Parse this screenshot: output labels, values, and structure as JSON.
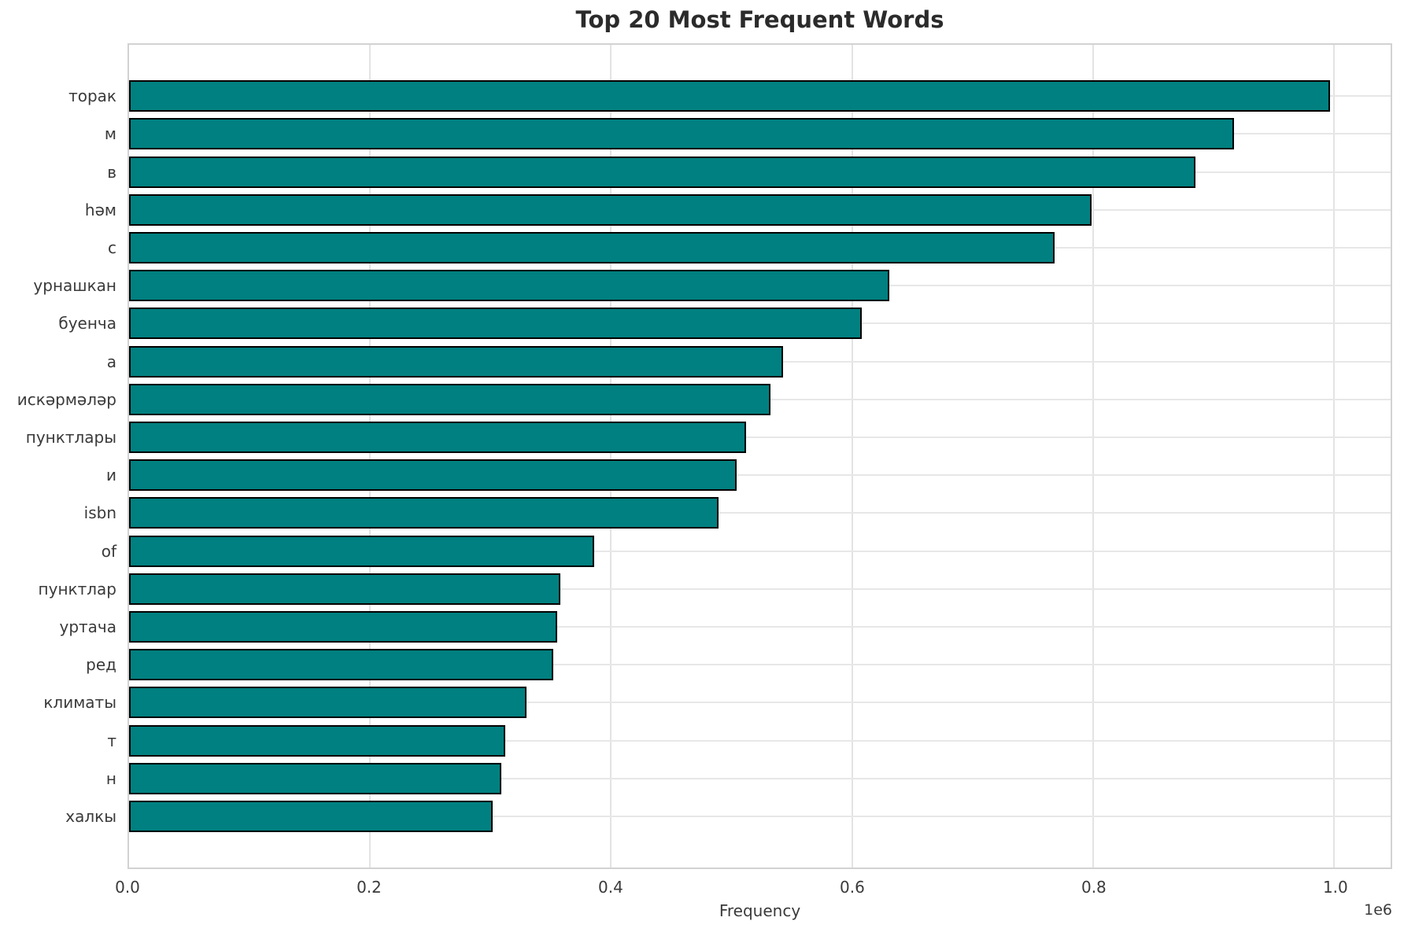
{
  "chart_data": {
    "type": "bar",
    "orientation": "horizontal",
    "title": "Top 20 Most Frequent Words",
    "xlabel": "Frequency",
    "ylabel": "",
    "offset_text": "1e6",
    "categories": [
      "торак",
      "м",
      "в",
      "һәм",
      "с",
      "урнашкан",
      "буенча",
      "а",
      "искәрмәләр",
      "пунктлары",
      "и",
      "isbn",
      "of",
      "пунктлар",
      "уртача",
      "ред",
      "климаты",
      "т",
      "н",
      "халкы"
    ],
    "values": [
      997000,
      917000,
      885000,
      799000,
      768000,
      631000,
      608000,
      543000,
      532000,
      512000,
      504000,
      489000,
      386000,
      358000,
      355000,
      352000,
      330000,
      312000,
      309000,
      302000
    ],
    "x_ticks": [
      {
        "value": 0,
        "label": "0.0"
      },
      {
        "value": 200000,
        "label": "0.2"
      },
      {
        "value": 400000,
        "label": "0.4"
      },
      {
        "value": 600000,
        "label": "0.6"
      },
      {
        "value": 800000,
        "label": "0.8"
      },
      {
        "value": 1000000,
        "label": "1.0"
      }
    ],
    "xlim": [
      0,
      1047000
    ],
    "grid": true,
    "legend": null,
    "colors": {
      "bar_fill": "#008080",
      "bar_edge": "#000000",
      "grid": "#e3e3e3",
      "spine": "#d2d2d2",
      "text": "#3a3a3a",
      "title_text": "#2b2b2b"
    }
  }
}
